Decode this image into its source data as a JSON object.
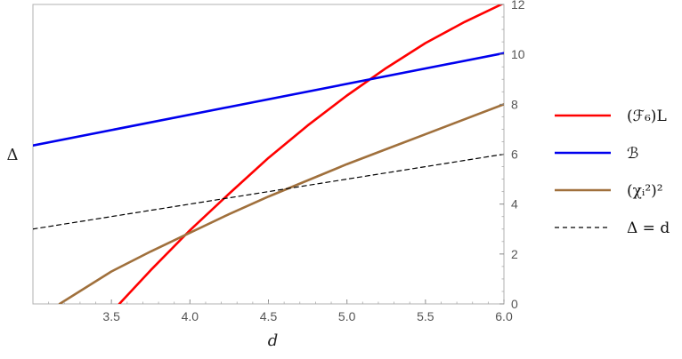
{
  "chart_data": {
    "type": "line",
    "xlabel": "d",
    "ylabel": "Δ",
    "xlim": [
      3.0,
      6.0
    ],
    "ylim": [
      0,
      12
    ],
    "x_ticks": [
      3.5,
      4.0,
      4.5,
      5.0,
      5.5,
      6.0
    ],
    "x_tick_labels": [
      "3.5",
      "4.0",
      "4.5",
      "5.0",
      "5.5",
      "6.0"
    ],
    "y_ticks": [
      0,
      2,
      4,
      6,
      8,
      10,
      12
    ],
    "y_tick_labels": [
      "0",
      "2",
      "4",
      "6",
      "8",
      "10",
      "12"
    ],
    "grid": false,
    "legend_position": "right",
    "series": [
      {
        "name": "(ℱ₆)L",
        "color": "#ff0000",
        "dash": "solid",
        "x": [
          3.55,
          3.75,
          4.0,
          4.25,
          4.5,
          4.75,
          5.0,
          5.25,
          5.5,
          5.75,
          6.0
        ],
        "y": [
          0.0,
          1.35,
          2.95,
          4.42,
          5.85,
          7.15,
          8.35,
          9.45,
          10.45,
          11.3,
          12.05
        ]
      },
      {
        "name": "ℬ",
        "color": "#0000ee",
        "dash": "solid",
        "x": [
          3.0,
          6.0
        ],
        "y": [
          6.35,
          10.05
        ]
      },
      {
        "name": "(χᵢ²)²",
        "color": "#a0703c",
        "dash": "solid",
        "x": [
          3.17,
          3.5,
          3.75,
          4.0,
          4.25,
          4.5,
          4.75,
          5.0,
          5.25,
          5.5,
          5.75,
          6.0
        ],
        "y": [
          0.0,
          1.3,
          2.1,
          2.85,
          3.6,
          4.3,
          4.95,
          5.6,
          6.2,
          6.8,
          7.4,
          8.0
        ]
      },
      {
        "name": "Δ = d",
        "color": "#000000",
        "dash": "dashed",
        "x": [
          3.0,
          6.0
        ],
        "y": [
          3.0,
          6.0
        ]
      }
    ]
  }
}
